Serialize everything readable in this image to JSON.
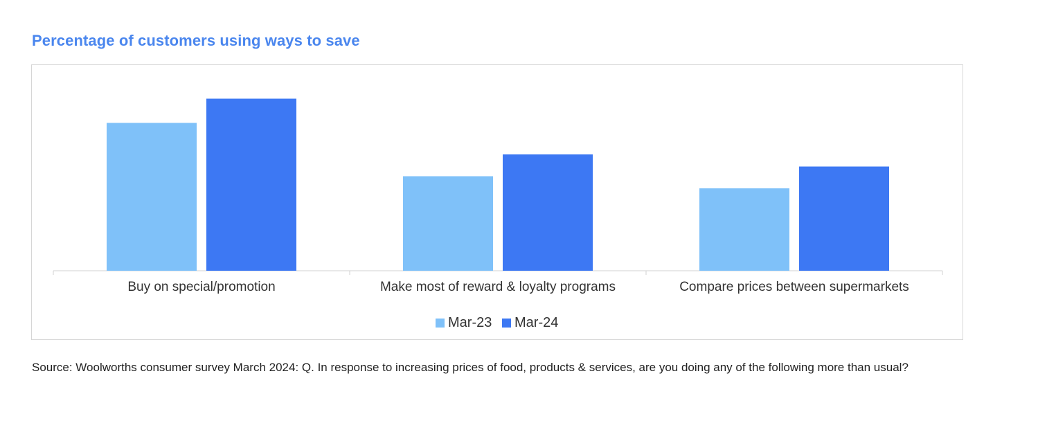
{
  "page": {
    "source_text": "Source: Woolworths consumer survey March 2024: Q. In response to increasing prices of food, products & services, are you doing any of the following more than usual?"
  },
  "chart_data": {
    "type": "bar",
    "title": "Percentage of customers using ways to save",
    "categories": [
      "Buy on special/promotion",
      "Make most of reward & loyalty programs",
      "Compare prices between supermarkets"
    ],
    "series": [
      {
        "name": "Mar-23",
        "color": "#7fc1f9",
        "values": [
          61,
          39,
          34
        ]
      },
      {
        "name": "Mar-24",
        "color": "#3d78f3",
        "values": [
          71,
          48,
          43
        ]
      }
    ],
    "ylim": [
      0,
      80
    ],
    "legend_position": "bottom",
    "grid": false
  }
}
